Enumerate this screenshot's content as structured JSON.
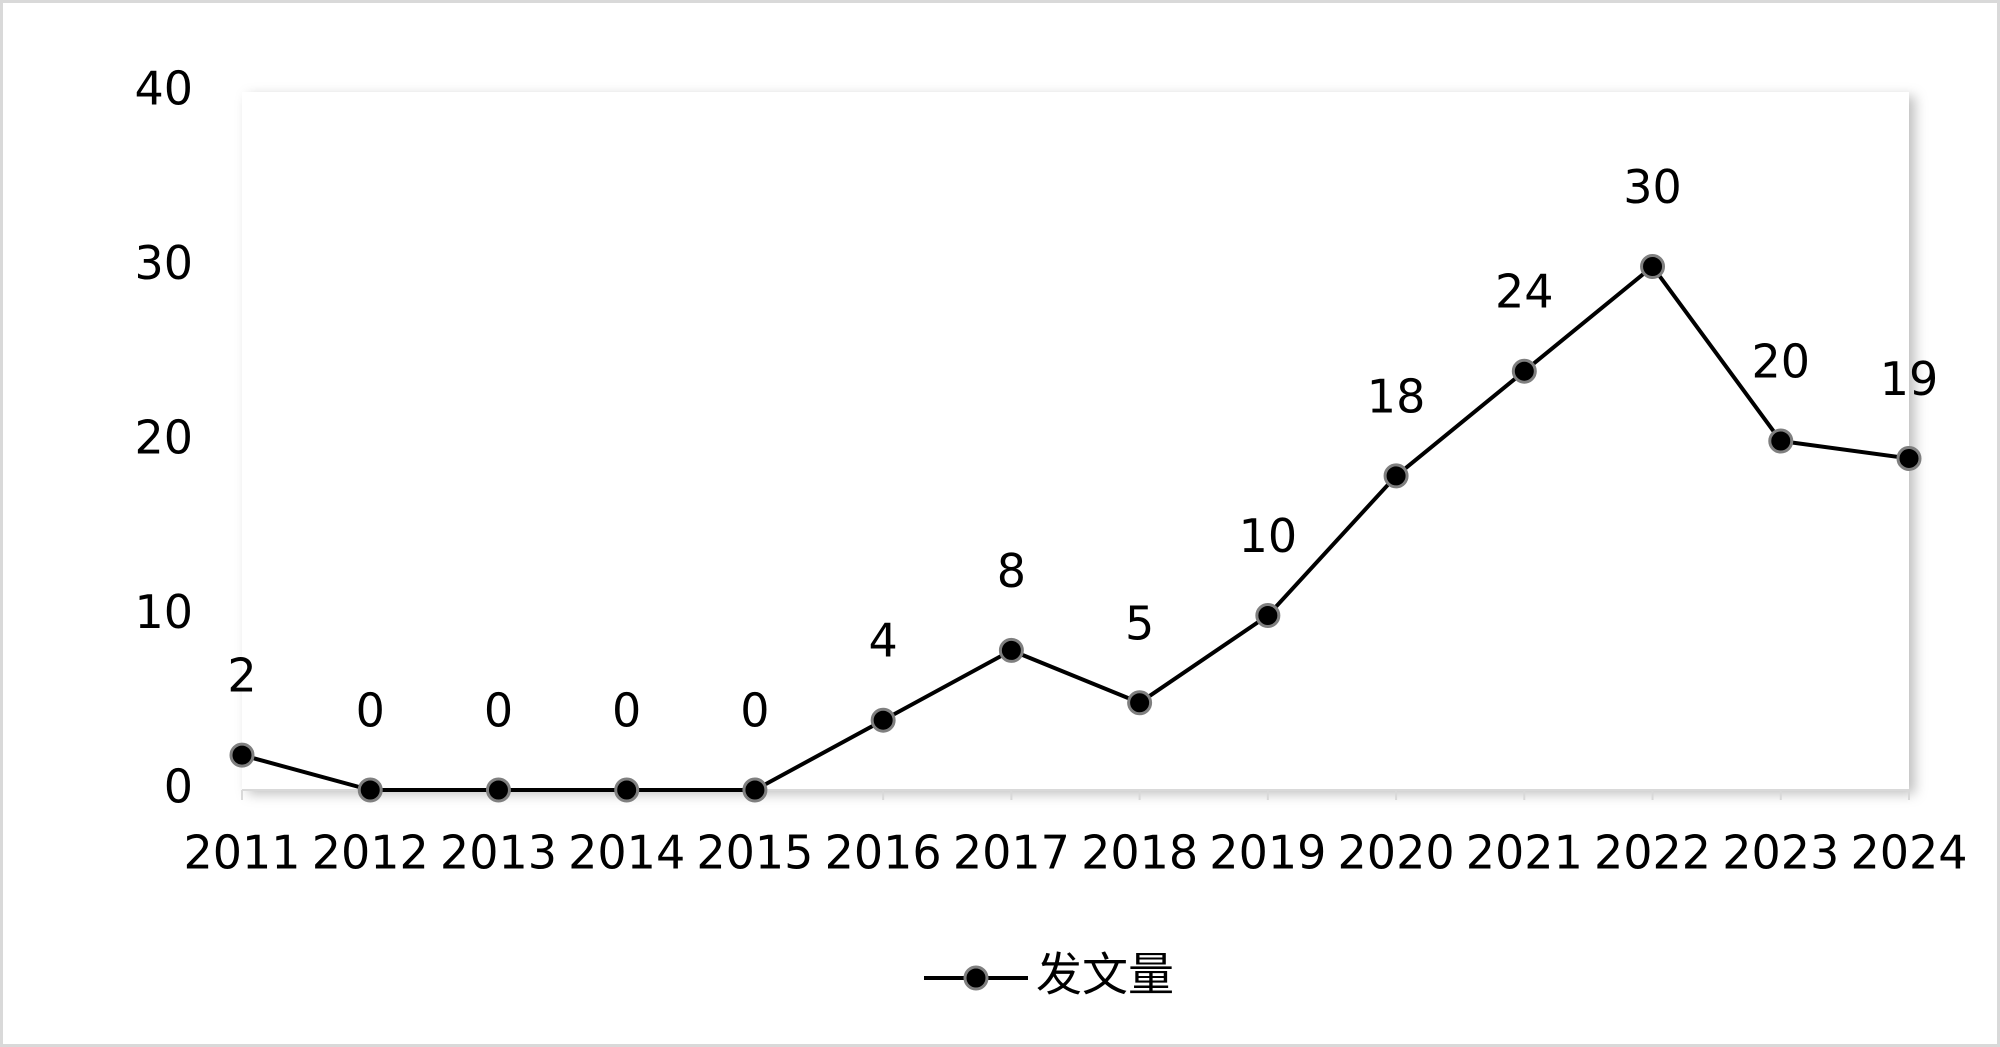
{
  "chart_data": {
    "type": "line",
    "categories": [
      "2011",
      "2012",
      "2013",
      "2014",
      "2015",
      "2016",
      "2017",
      "2018",
      "2019",
      "2020",
      "2021",
      "2022",
      "2023",
      "2024"
    ],
    "series": [
      {
        "name": "发文量",
        "color": "#000000",
        "marker_edge": "#7f7f7f",
        "values": [
          2,
          0,
          0,
          0,
          0,
          4,
          8,
          5,
          10,
          18,
          24,
          30,
          20,
          19
        ]
      }
    ],
    "ylim": [
      0,
      40
    ],
    "yticks": [
      0,
      10,
      20,
      30,
      40
    ],
    "grid": false,
    "data_labels": true,
    "legend": "bottom"
  }
}
